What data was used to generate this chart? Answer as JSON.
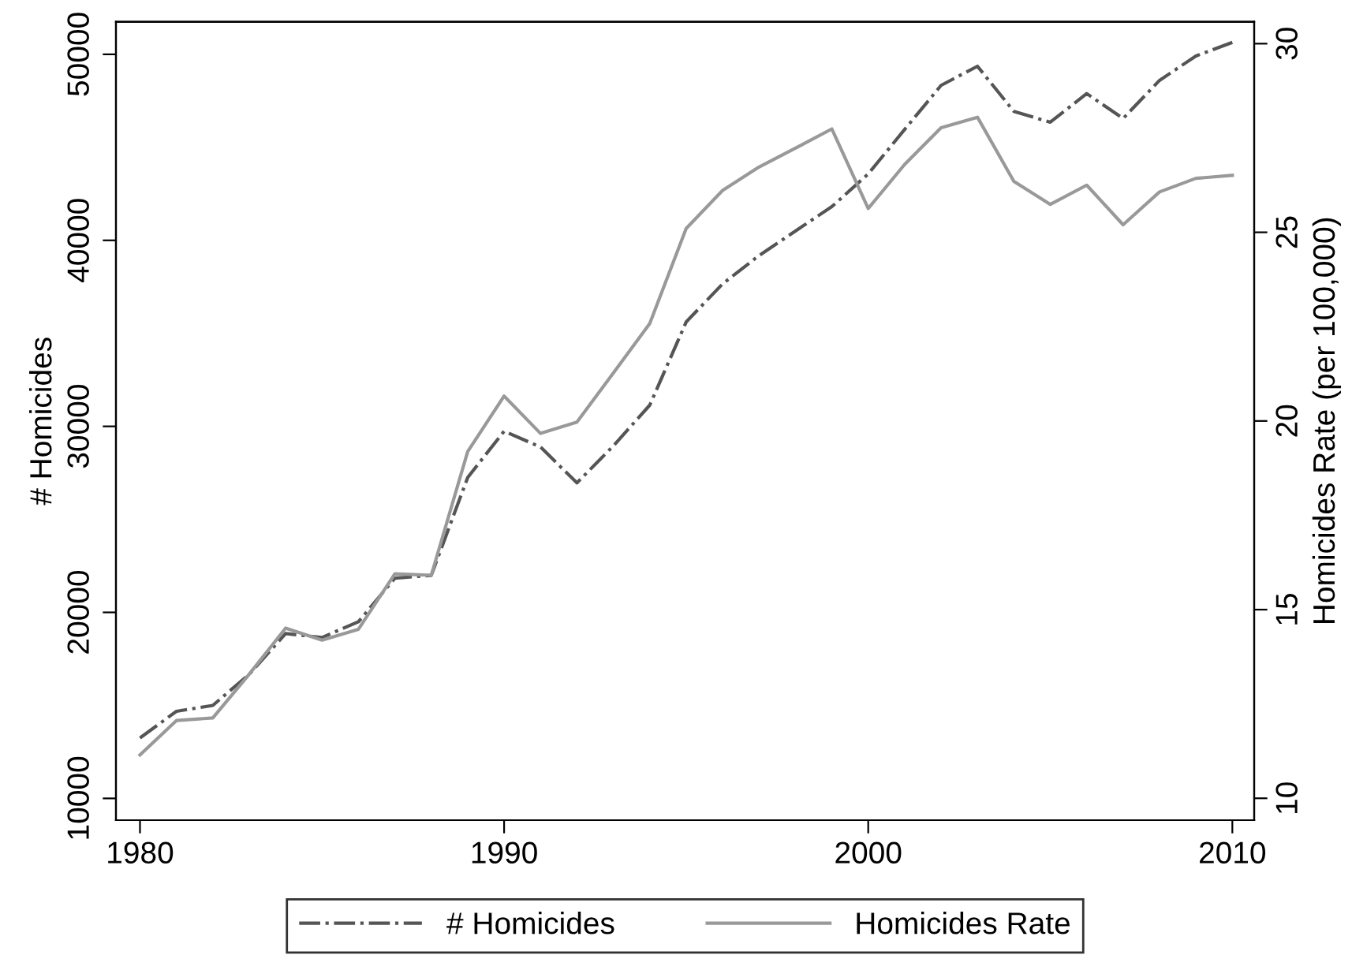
{
  "chart_data": {
    "type": "line",
    "x": [
      1980,
      1981,
      1982,
      1983,
      1984,
      1985,
      1986,
      1987,
      1988,
      1989,
      1990,
      1991,
      1992,
      1993,
      1994,
      1995,
      1996,
      1997,
      1998,
      1999,
      2000,
      2001,
      2002,
      2003,
      2004,
      2005,
      2006,
      2007,
      2008,
      2009,
      2010
    ],
    "series": [
      {
        "name": "# Homicides",
        "color": "#555555",
        "line_style": "dashdot",
        "axis": "y",
        "values": [
          13250,
          14680,
          15000,
          16670,
          18860,
          18650,
          19500,
          21840,
          21990,
          27250,
          29740,
          28890,
          26960,
          28950,
          31140,
          35610,
          37660,
          39180,
          40500,
          41810,
          43570,
          45960,
          48330,
          49360,
          46930,
          46350,
          47890,
          46550,
          48600,
          49910,
          50640
        ]
      },
      {
        "name": "Homicides Rate",
        "color": "#999999",
        "line_style": "solid",
        "axis": "y2",
        "values": [
          11.15,
          12.06,
          12.13,
          13.29,
          14.51,
          14.19,
          14.48,
          15.95,
          15.91,
          19.19,
          20.66,
          19.67,
          19.97,
          21.27,
          22.58,
          25.1,
          26.11,
          26.73,
          27.23,
          27.74,
          25.63,
          26.8,
          27.77,
          28.05,
          26.35,
          25.74,
          26.25,
          25.2,
          26.07,
          26.43,
          26.51
        ]
      }
    ],
    "ylabel": "# Homicides",
    "y2label": "Homicides Rate (per 100,000)",
    "xlim": [
      1979.34,
      2010.6
    ],
    "xticks": [
      1980,
      1990,
      2000,
      2010
    ],
    "ylim": [
      8830,
      51750
    ],
    "yticks": [
      10000,
      20000,
      30000,
      40000,
      50000
    ],
    "y2lim": [
      9.42,
      30.58
    ],
    "y2ticks": [
      10,
      15,
      20,
      25,
      30
    ],
    "grid": false,
    "legend": "bottom"
  }
}
